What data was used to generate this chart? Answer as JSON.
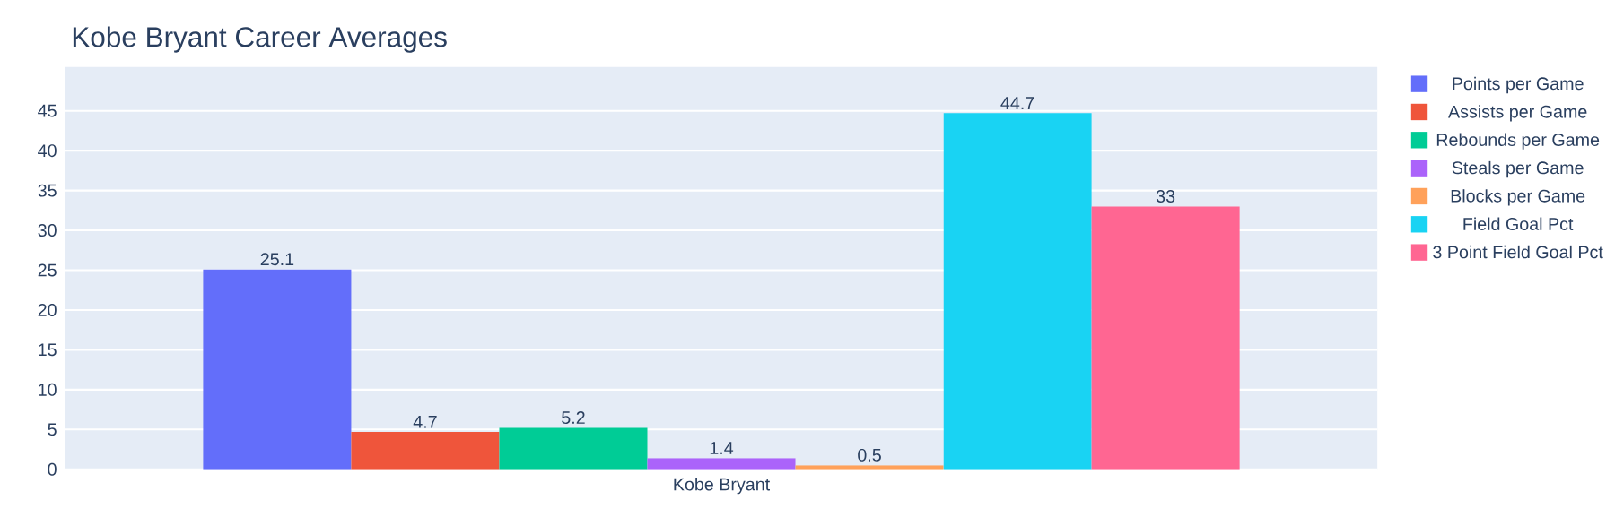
{
  "chart_data": {
    "type": "bar",
    "title": "Kobe Bryant Career Averages",
    "categories": [
      "Kobe Bryant"
    ],
    "series": [
      {
        "name": "Points per Game",
        "color": "#636efa",
        "values": [
          25.1
        ]
      },
      {
        "name": "Assists per Game",
        "color": "#ef553b",
        "values": [
          4.7
        ]
      },
      {
        "name": "Rebounds per Game",
        "color": "#00cc96",
        "values": [
          5.2
        ]
      },
      {
        "name": "Steals per Game",
        "color": "#ab63fa",
        "values": [
          1.4
        ]
      },
      {
        "name": "Blocks per Game",
        "color": "#ffa15a",
        "values": [
          0.5
        ]
      },
      {
        "name": "Field Goal Pct",
        "color": "#19d3f3",
        "values": [
          44.7
        ]
      },
      {
        "name": "3 Point Field Goal Pct",
        "color": "#ff6692",
        "values": [
          33
        ]
      }
    ],
    "ylim": [
      0,
      50.5
    ],
    "yticks": [
      0,
      5,
      10,
      15,
      20,
      25,
      30,
      35,
      40,
      45
    ],
    "grid": "y",
    "legend": "top right",
    "data_labels": true
  }
}
